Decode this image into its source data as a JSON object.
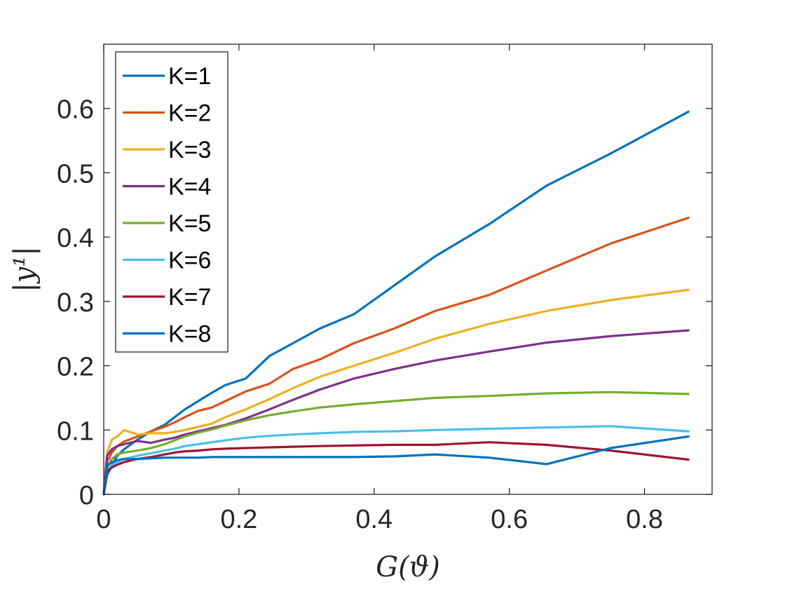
{
  "chart_data": {
    "type": "line",
    "title": "",
    "xlabel": "G(ϑ)",
    "ylabel": "|y¹|",
    "xlim": [
      0,
      0.9
    ],
    "ylim": [
      0,
      0.7
    ],
    "xticks": [
      0,
      0.2,
      0.4,
      0.6,
      0.8
    ],
    "xtick_labels": [
      "0",
      "0.2",
      "0.4",
      "0.6",
      "0.8"
    ],
    "yticks": [
      0,
      0.1,
      0.2,
      0.3,
      0.4,
      0.5,
      0.6
    ],
    "ytick_labels": [
      "0",
      "0.1",
      "0.2",
      "0.3",
      "0.4",
      "0.5",
      "0.6"
    ],
    "grid": false,
    "legend_position": "top-left",
    "series": [
      {
        "name": "K=1",
        "color": "#0072BD",
        "x": [
          0,
          0.005,
          0.012,
          0.02,
          0.03,
          0.05,
          0.07,
          0.09,
          0.105,
          0.12,
          0.14,
          0.16,
          0.18,
          0.21,
          0.245,
          0.28,
          0.32,
          0.37,
          0.43,
          0.49,
          0.57,
          0.655,
          0.75,
          0.865
        ],
        "y": [
          0,
          0.03,
          0.045,
          0.06,
          0.07,
          0.085,
          0.098,
          0.108,
          0.12,
          0.132,
          0.145,
          0.158,
          0.17,
          0.18,
          0.215,
          0.235,
          0.258,
          0.28,
          0.325,
          0.37,
          0.42,
          0.48,
          0.53,
          0.595
        ]
      },
      {
        "name": "K=2",
        "color": "#D95319",
        "x": [
          0,
          0.005,
          0.012,
          0.02,
          0.03,
          0.05,
          0.07,
          0.09,
          0.105,
          0.12,
          0.14,
          0.16,
          0.18,
          0.21,
          0.245,
          0.28,
          0.32,
          0.37,
          0.43,
          0.49,
          0.57,
          0.655,
          0.75,
          0.865
        ],
        "y": [
          0,
          0.05,
          0.065,
          0.075,
          0.082,
          0.09,
          0.098,
          0.105,
          0.112,
          0.12,
          0.13,
          0.135,
          0.145,
          0.16,
          0.172,
          0.195,
          0.21,
          0.235,
          0.258,
          0.285,
          0.31,
          0.348,
          0.39,
          0.43
        ]
      },
      {
        "name": "K=3",
        "color": "#EDB120",
        "x": [
          0,
          0.005,
          0.012,
          0.02,
          0.03,
          0.05,
          0.07,
          0.09,
          0.105,
          0.12,
          0.14,
          0.16,
          0.18,
          0.21,
          0.245,
          0.28,
          0.32,
          0.37,
          0.43,
          0.49,
          0.57,
          0.655,
          0.75,
          0.865
        ],
        "y": [
          0,
          0.065,
          0.085,
          0.09,
          0.1,
          0.093,
          0.095,
          0.095,
          0.097,
          0.1,
          0.105,
          0.11,
          0.12,
          0.132,
          0.148,
          0.165,
          0.183,
          0.2,
          0.22,
          0.242,
          0.265,
          0.285,
          0.302,
          0.318
        ]
      },
      {
        "name": "K=4",
        "color": "#7E2F8E",
        "x": [
          0,
          0.005,
          0.012,
          0.02,
          0.03,
          0.05,
          0.07,
          0.09,
          0.105,
          0.12,
          0.14,
          0.16,
          0.18,
          0.21,
          0.245,
          0.28,
          0.32,
          0.37,
          0.43,
          0.49,
          0.57,
          0.655,
          0.75,
          0.865
        ],
        "y": [
          0,
          0.06,
          0.07,
          0.075,
          0.078,
          0.083,
          0.08,
          0.085,
          0.088,
          0.093,
          0.098,
          0.103,
          0.108,
          0.118,
          0.132,
          0.147,
          0.163,
          0.18,
          0.195,
          0.208,
          0.222,
          0.236,
          0.246,
          0.255
        ]
      },
      {
        "name": "K=5",
        "color": "#77AC30",
        "x": [
          0,
          0.005,
          0.012,
          0.02,
          0.03,
          0.05,
          0.07,
          0.09,
          0.105,
          0.12,
          0.14,
          0.16,
          0.18,
          0.21,
          0.245,
          0.28,
          0.32,
          0.37,
          0.43,
          0.49,
          0.57,
          0.655,
          0.75,
          0.865
        ],
        "y": [
          0,
          0.04,
          0.055,
          0.062,
          0.065,
          0.068,
          0.072,
          0.078,
          0.084,
          0.09,
          0.096,
          0.101,
          0.107,
          0.115,
          0.123,
          0.129,
          0.135,
          0.14,
          0.145,
          0.15,
          0.153,
          0.157,
          0.159,
          0.156
        ]
      },
      {
        "name": "K=6",
        "color": "#4DBEEE",
        "x": [
          0,
          0.005,
          0.012,
          0.02,
          0.03,
          0.05,
          0.07,
          0.09,
          0.105,
          0.12,
          0.14,
          0.16,
          0.18,
          0.21,
          0.245,
          0.28,
          0.32,
          0.37,
          0.43,
          0.49,
          0.57,
          0.655,
          0.75,
          0.865
        ],
        "y": [
          0,
          0.035,
          0.045,
          0.05,
          0.055,
          0.06,
          0.064,
          0.068,
          0.071,
          0.075,
          0.078,
          0.081,
          0.084,
          0.088,
          0.091,
          0.093,
          0.095,
          0.097,
          0.098,
          0.1,
          0.102,
          0.104,
          0.106,
          0.098
        ]
      },
      {
        "name": "K=7",
        "color": "#A2142F",
        "x": [
          0,
          0.005,
          0.012,
          0.02,
          0.03,
          0.05,
          0.07,
          0.09,
          0.105,
          0.12,
          0.14,
          0.16,
          0.18,
          0.21,
          0.245,
          0.28,
          0.32,
          0.37,
          0.43,
          0.49,
          0.57,
          0.655,
          0.75,
          0.865
        ],
        "y": [
          0,
          0.035,
          0.042,
          0.046,
          0.05,
          0.055,
          0.058,
          0.062,
          0.065,
          0.067,
          0.068,
          0.07,
          0.071,
          0.072,
          0.073,
          0.074,
          0.075,
          0.076,
          0.077,
          0.077,
          0.081,
          0.077,
          0.068,
          0.054
        ]
      },
      {
        "name": "K=8",
        "color": "#0072BD",
        "x": [
          0,
          0.005,
          0.012,
          0.02,
          0.03,
          0.05,
          0.07,
          0.09,
          0.105,
          0.12,
          0.14,
          0.16,
          0.18,
          0.21,
          0.245,
          0.28,
          0.32,
          0.37,
          0.43,
          0.49,
          0.57,
          0.655,
          0.75,
          0.865
        ],
        "y": [
          0,
          0.045,
          0.05,
          0.053,
          0.055,
          0.055,
          0.056,
          0.057,
          0.057,
          0.057,
          0.057,
          0.058,
          0.058,
          0.058,
          0.058,
          0.058,
          0.058,
          0.058,
          0.059,
          0.062,
          0.057,
          0.047,
          0.072,
          0.09
        ]
      }
    ]
  }
}
